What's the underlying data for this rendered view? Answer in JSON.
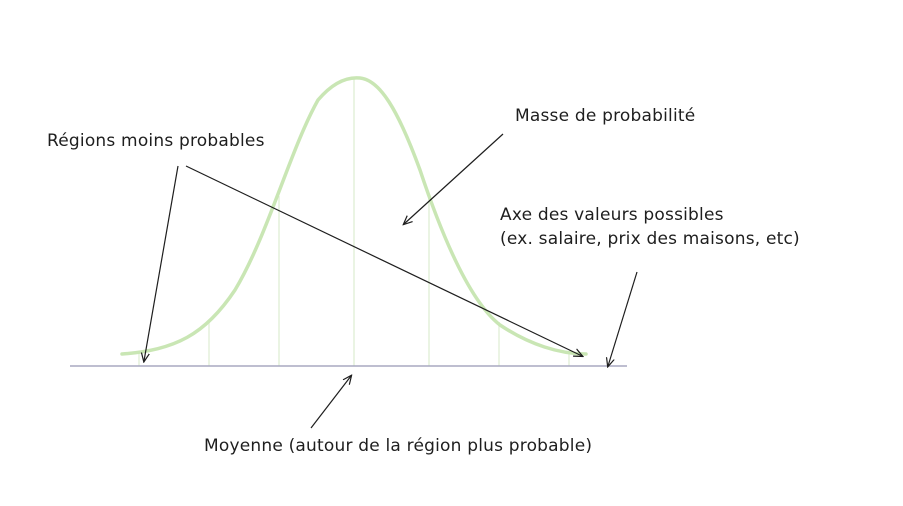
{
  "diagram": {
    "labels": {
      "regions": "Régions moins probables",
      "masse": "Masse de probabilité",
      "axe_line1": "Axe des valeurs possibles",
      "axe_line2": "(ex. salaire, prix des maisons, etc)",
      "moyenne": "Moyenne (autour de la région plus probable)"
    },
    "colors": {
      "curve": "#c9e6b4",
      "gridline": "#e4f0da",
      "axis": "#a8a8c0",
      "arrow": "#1e1e1e",
      "text": "#1e1e1e"
    }
  }
}
